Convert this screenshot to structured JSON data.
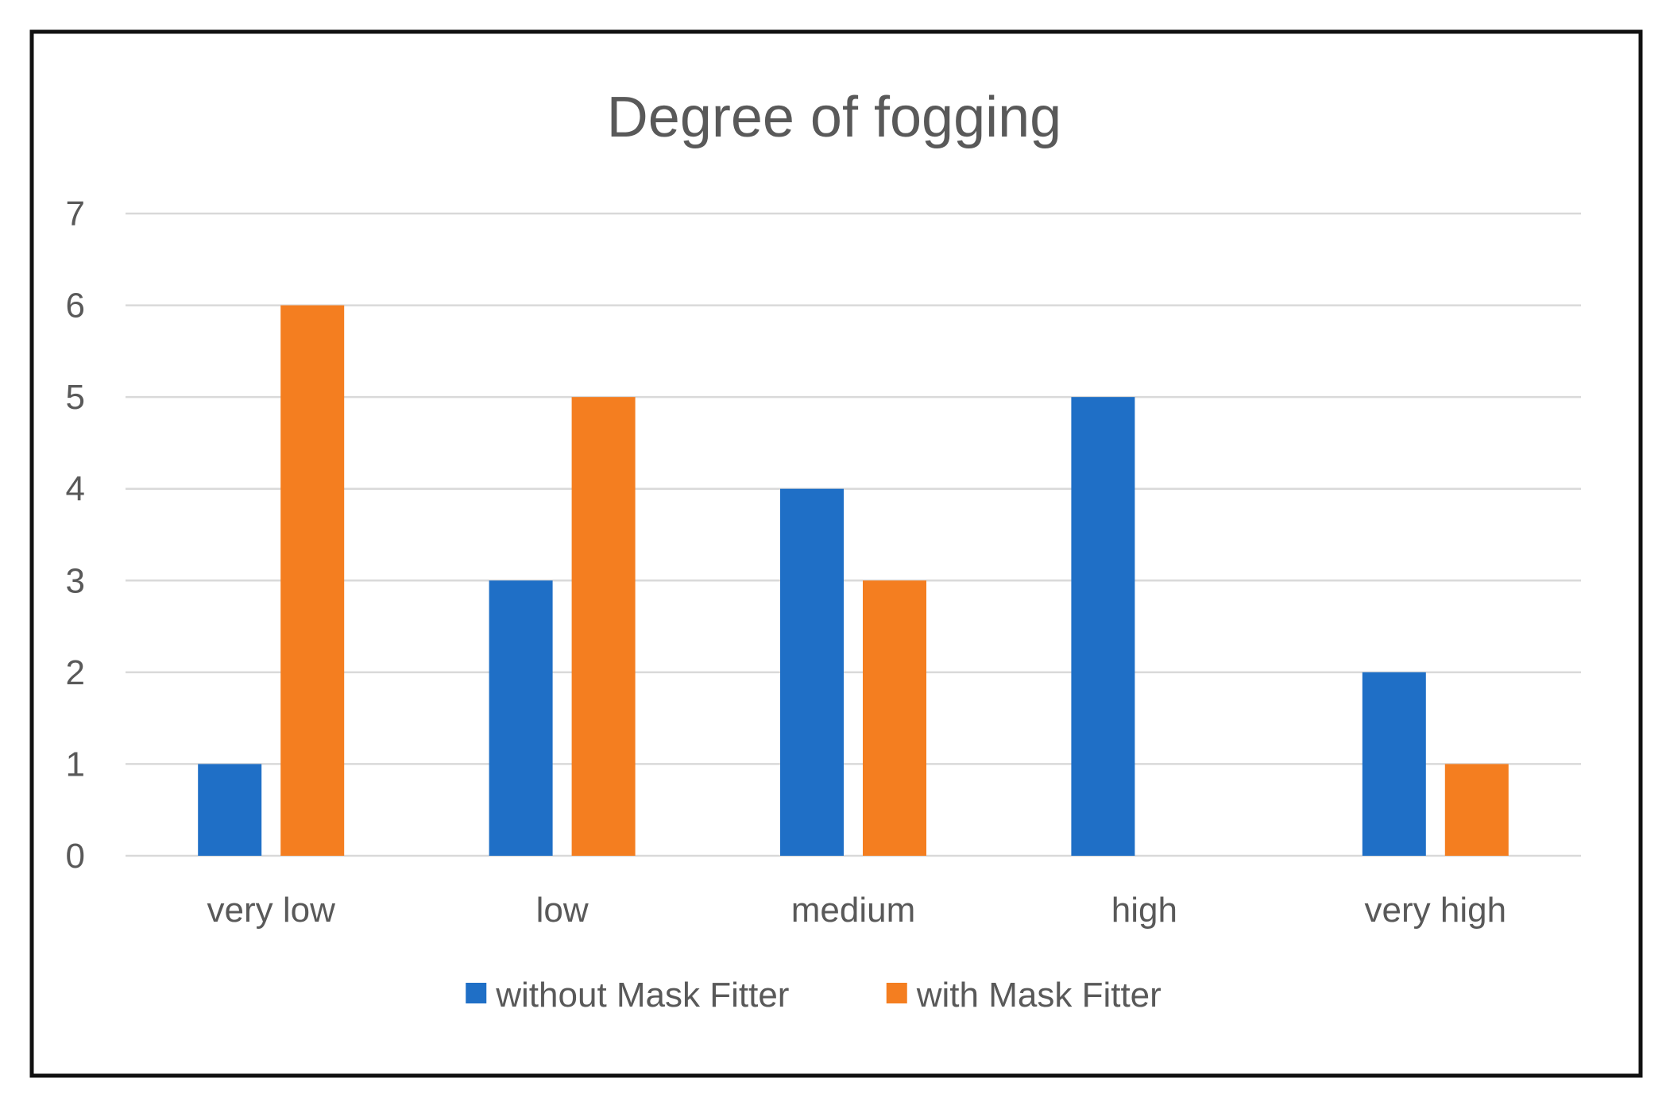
{
  "chart_data": {
    "type": "bar",
    "title": "Degree of fogging",
    "xlabel": "",
    "ylabel": "",
    "categories": [
      "very low",
      "low",
      "medium",
      "high",
      "very high"
    ],
    "series": [
      {
        "name": "without Mask Fitter",
        "values": [
          1,
          3,
          4,
          5,
          2
        ],
        "color": "#1f6fc6"
      },
      {
        "name": "with Mask Fitter",
        "values": [
          6,
          5,
          3,
          0,
          1
        ],
        "color": "#f47e20"
      }
    ],
    "yticks": [
      "0",
      "1",
      "2",
      "3",
      "4",
      "5",
      "6",
      "7"
    ],
    "ylim": [
      0,
      7
    ],
    "grid": true,
    "legend_position": "bottom"
  }
}
